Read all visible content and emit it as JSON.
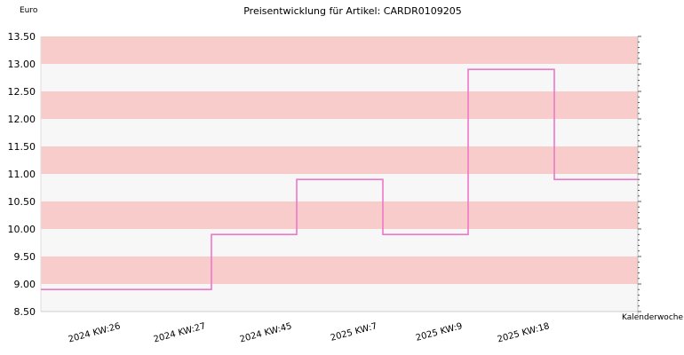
{
  "chart_data": {
    "type": "line",
    "step": true,
    "title": "Preisentwicklung für Artikel: CARDR0109205",
    "ylabel": "Euro",
    "xlabel": "Kalenderwoche",
    "ylim": [
      8.5,
      13.5
    ],
    "ytick_labels": [
      "8.50",
      "9.00",
      "9.50",
      "10.00",
      "10.50",
      "11.00",
      "11.50",
      "12.00",
      "12.50",
      "13.00",
      "13.50"
    ],
    "categories": [
      "2024 KW:26",
      "2024 KW:27",
      "2024 KW:45",
      "2025 KW:7",
      "2025 KW:9",
      "2025 KW:18"
    ],
    "values": [
      8.9,
      9.9,
      10.9,
      9.9,
      12.9,
      10.9
    ],
    "series_color": "#ee77c8",
    "band_colors": [
      "#f7f7f7",
      "#f9cccc"
    ],
    "grid": true
  }
}
